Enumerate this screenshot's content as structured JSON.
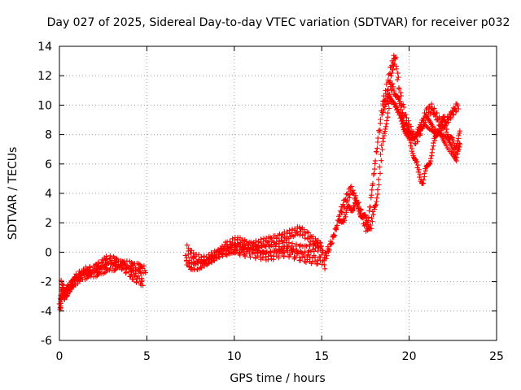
{
  "chart_data": {
    "type": "scatter",
    "title": "Day 027 of 2025, Sidereal Day-to-day VTEC variation (SDTVAR) for receiver p032",
    "xlabel": "GPS time / hours",
    "ylabel": "SDTVAR / TECUs",
    "xlim": [
      0,
      25
    ],
    "ylim": [
      -6,
      14
    ],
    "xticks": [
      "0",
      "5",
      "10",
      "15",
      "20",
      "25"
    ],
    "yticks": [
      "-6",
      "-4",
      "-2",
      "0",
      "2",
      "4",
      "6",
      "8",
      "10",
      "12",
      "14"
    ],
    "grid": true,
    "marker": "plus",
    "colors": {
      "series": "#ff0000"
    },
    "series": [
      {
        "x": [
          0.0,
          0.1,
          0.2,
          0.3,
          0.5,
          0.7,
          1.0,
          1.3,
          1.6,
          2.0,
          2.3,
          2.6,
          3.0,
          3.3,
          3.6,
          4.0,
          4.3,
          4.6,
          4.9
        ],
        "y": [
          -3.8,
          -3.2,
          -2.5,
          -3.0,
          -2.6,
          -2.2,
          -1.9,
          -1.6,
          -1.5,
          -1.4,
          -1.3,
          -1.1,
          -1.0,
          -0.9,
          -0.8,
          -0.9,
          -1.0,
          -1.1,
          -1.2
        ]
      },
      {
        "x": [
          0.1,
          0.3,
          0.5,
          0.8,
          1.1,
          1.5,
          1.9,
          2.2,
          2.5,
          2.8,
          3.2,
          3.6,
          4.0,
          4.4,
          4.8
        ],
        "y": [
          -2.2,
          -2.8,
          -2.5,
          -2.0,
          -1.6,
          -1.3,
          -1.2,
          -1.0,
          -0.7,
          -0.5,
          -0.6,
          -0.9,
          -1.4,
          -1.8,
          -2.1
        ]
      },
      {
        "x": [
          7.2,
          7.5,
          7.8,
          8.2,
          8.6,
          9.0,
          9.5,
          10.0,
          10.5,
          11.0,
          11.5,
          12.0,
          12.5,
          13.0,
          13.5,
          14.0,
          14.5,
          15.0
        ],
        "y": [
          -0.5,
          -0.9,
          -1.0,
          -0.8,
          -0.4,
          -0.1,
          0.0,
          0.2,
          0.3,
          0.3,
          0.2,
          0.2,
          0.3,
          0.4,
          0.3,
          0.2,
          0.3,
          0.4
        ]
      },
      {
        "x": [
          7.3,
          7.7,
          8.1,
          8.5,
          8.9,
          9.3,
          9.7,
          10.1,
          10.5,
          10.9,
          11.3,
          11.7,
          12.1,
          12.5,
          12.9,
          13.3,
          13.7,
          14.1,
          14.5,
          14.9,
          15.2
        ],
        "y": [
          0.2,
          -0.3,
          -0.5,
          -0.6,
          -0.3,
          0.1,
          0.5,
          0.8,
          0.6,
          0.4,
          0.5,
          0.7,
          0.8,
          0.9,
          1.1,
          1.3,
          1.5,
          1.2,
          0.8,
          0.5,
          -0.9
        ]
      },
      {
        "x": [
          9.5,
          10.0,
          10.5,
          11.0,
          11.5,
          12.0,
          12.5,
          13.0,
          13.5,
          14.0,
          14.5,
          15.0
        ],
        "y": [
          0.4,
          0.2,
          0.0,
          -0.1,
          -0.2,
          -0.3,
          -0.1,
          0.0,
          -0.2,
          -0.4,
          -0.5,
          -0.6
        ]
      },
      {
        "x": [
          15.2,
          15.5,
          15.8,
          16.1,
          16.4,
          16.7,
          17.0,
          17.3,
          17.6,
          17.9,
          18.2,
          18.5,
          18.8,
          19.0,
          19.2,
          19.5,
          19.8,
          20.1,
          20.4,
          20.7,
          21.0,
          21.3,
          21.6,
          21.9,
          22.2,
          22.5,
          22.8
        ],
        "y": [
          -0.3,
          0.5,
          1.5,
          2.8,
          3.6,
          4.3,
          3.5,
          2.5,
          1.5,
          4.5,
          7.5,
          10.0,
          11.5,
          12.5,
          13.3,
          10.5,
          9.0,
          8.2,
          7.5,
          8.5,
          9.5,
          9.8,
          9.2,
          8.5,
          9.0,
          9.5,
          10.0
        ]
      },
      {
        "x": [
          16.0,
          16.3,
          16.6,
          16.9,
          17.2,
          17.5,
          17.8,
          18.1,
          18.4,
          18.7,
          19.0,
          19.3,
          19.6,
          19.9,
          20.2,
          20.5,
          20.8,
          21.1,
          21.4,
          21.7,
          22.0,
          22.3,
          22.6,
          22.9
        ],
        "y": [
          1.8,
          2.5,
          3.0,
          3.2,
          2.8,
          2.2,
          1.8,
          3.2,
          6.5,
          9.0,
          11.2,
          10.8,
          9.2,
          8.0,
          7.0,
          5.5,
          4.8,
          6.0,
          7.2,
          8.5,
          9.0,
          7.8,
          7.2,
          8.0
        ]
      },
      {
        "x": [
          18.5,
          18.8,
          19.1,
          19.4,
          19.7,
          20.0,
          20.3,
          20.6,
          20.9,
          21.2,
          21.5,
          21.8,
          22.1,
          22.4,
          22.7,
          22.9
        ],
        "y": [
          9.8,
          10.5,
          10.2,
          9.5,
          8.6,
          8.0,
          7.8,
          8.4,
          9.0,
          8.6,
          8.2,
          8.0,
          7.6,
          7.0,
          6.4,
          7.4
        ]
      }
    ]
  }
}
